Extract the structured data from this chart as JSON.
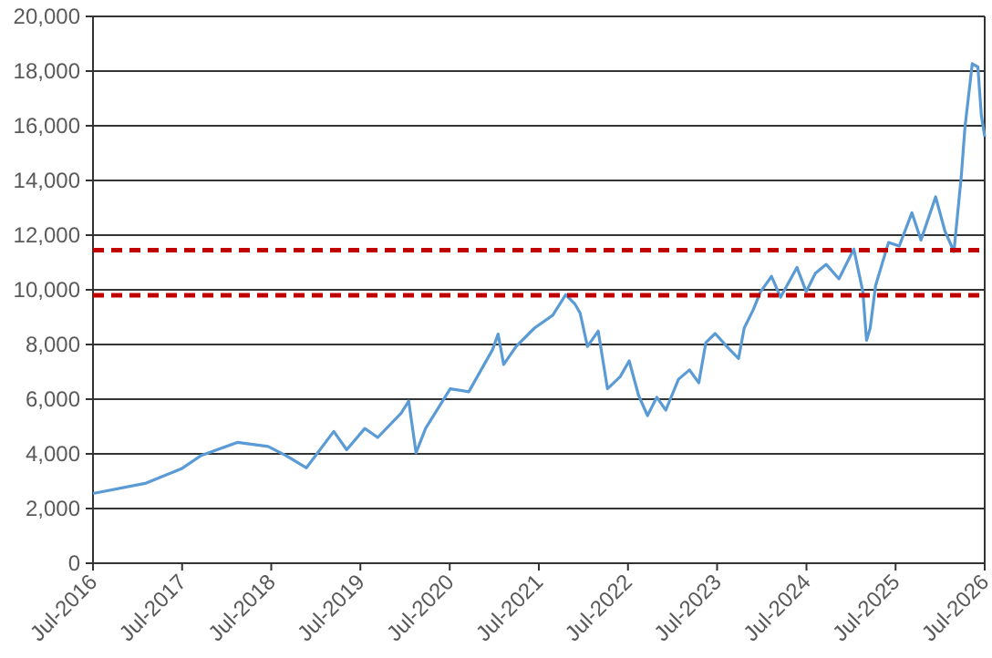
{
  "chart_data": {
    "type": "line",
    "x": [
      "2016-07-01",
      "2017-02-04",
      "2017-07-01",
      "2017-09-15",
      "2018-02-12",
      "2018-06-18",
      "2018-09-01",
      "2018-11-22",
      "2019-03-14",
      "2019-05-06",
      "2019-07-19",
      "2019-09-10",
      "2019-12-15",
      "2020-01-15",
      "2020-02-14",
      "2020-03-24",
      "2020-07-03",
      "2020-09-17",
      "2020-12-24",
      "2021-01-15",
      "2021-02-07",
      "2021-03-30",
      "2021-06-13",
      "2021-08-27",
      "2021-10-19",
      "2021-11-25",
      "2021-12-17",
      "2022-01-16",
      "2022-03-01",
      "2022-04-08",
      "2022-05-30",
      "2022-07-06",
      "2022-08-13",
      "2022-09-19",
      "2022-10-27",
      "2022-12-03",
      "2023-01-24",
      "2023-03-10",
      "2023-04-17",
      "2023-05-16",
      "2023-06-23",
      "2023-08-21",
      "2023-09-27",
      "2023-10-20",
      "2023-11-26",
      "2023-12-26",
      "2024-02-09",
      "2024-03-17",
      "2024-05-23",
      "2024-06-30",
      "2024-08-06",
      "2024-09-20",
      "2024-11-11",
      "2025-01-11",
      "2025-02-17",
      "2025-03-04",
      "2025-03-19",
      "2025-04-10",
      "2025-06-02",
      "2025-07-16",
      "2025-09-06",
      "2025-10-13",
      "2025-12-12",
      "2026-01-19",
      "2026-02-25",
      "2026-03-27",
      "2026-04-11",
      "2026-05-11",
      "2026-06-03",
      "2026-06-17",
      "2026-07-01"
    ],
    "series": [
      {
        "color": "#5b9bd5",
        "values": [
          2550,
          2930,
          3470,
          3930,
          4420,
          4270,
          3930,
          3490,
          4820,
          4150,
          4930,
          4600,
          5490,
          5930,
          4040,
          4930,
          6380,
          6270,
          7820,
          8380,
          7270,
          7930,
          8600,
          9070,
          9820,
          9490,
          9150,
          7930,
          8490,
          6380,
          6820,
          7400,
          6150,
          5400,
          6070,
          5600,
          6730,
          7070,
          6600,
          8070,
          8400,
          7820,
          7490,
          8600,
          9270,
          9930,
          10490,
          9730,
          10820,
          9930,
          10600,
          10930,
          10400,
          11490,
          9930,
          8150,
          8600,
          10150,
          11730,
          11600,
          12820,
          11820,
          13400,
          12150,
          11400,
          14150,
          15930,
          18270,
          18150,
          16400,
          15600
        ]
      }
    ],
    "xlim": [
      "2016-07-01",
      "2026-07-01"
    ],
    "xticks": [
      {
        "value": "2016-07-01",
        "label": "Jul-2016"
      },
      {
        "value": "2017-07-01",
        "label": "Jul-2017"
      },
      {
        "value": "2018-07-01",
        "label": "Jul-2018"
      },
      {
        "value": "2019-07-01",
        "label": "Jul-2019"
      },
      {
        "value": "2020-07-01",
        "label": "Jul-2020"
      },
      {
        "value": "2021-07-01",
        "label": "Jul-2021"
      },
      {
        "value": "2022-07-01",
        "label": "Jul-2022"
      },
      {
        "value": "2023-07-01",
        "label": "Jul-2023"
      },
      {
        "value": "2024-07-01",
        "label": "Jul-2024"
      },
      {
        "value": "2025-07-01",
        "label": "Jul-2025"
      },
      {
        "value": "2026-07-01",
        "label": "Jul-2026"
      }
    ],
    "ylim": [
      0,
      20000
    ],
    "yticks": [
      {
        "value": 0,
        "label": "0"
      },
      {
        "value": 2000,
        "label": "2,000"
      },
      {
        "value": 4000,
        "label": "4,000"
      },
      {
        "value": 6000,
        "label": "6,000"
      },
      {
        "value": 8000,
        "label": "8,000"
      },
      {
        "value": 10000,
        "label": "10,000"
      },
      {
        "value": 12000,
        "label": "12,000"
      },
      {
        "value": 14000,
        "label": "14,000"
      },
      {
        "value": 16000,
        "label": "16,000"
      },
      {
        "value": 18000,
        "label": "18,000"
      },
      {
        "value": 20000,
        "label": "20,000"
      }
    ],
    "grid": "y",
    "ref_lines": [
      {
        "axis": "y",
        "value": 11450,
        "color": "#c00000",
        "line_style": "dashed"
      },
      {
        "axis": "y",
        "value": 9800,
        "color": "#c00000",
        "line_style": "dashed"
      }
    ],
    "line_style": "solid"
  }
}
